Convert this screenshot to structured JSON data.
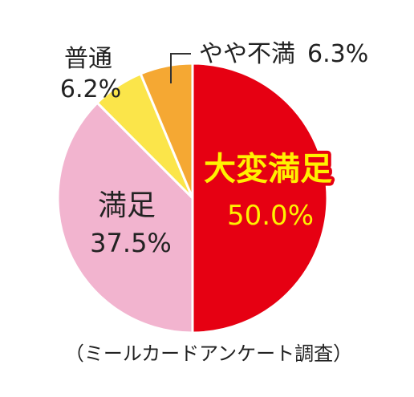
{
  "chart_data": {
    "type": "pie",
    "categories": [
      "大変満足",
      "満足",
      "普通",
      "やや不満"
    ],
    "values": [
      50.0,
      37.5,
      6.2,
      6.3
    ],
    "value_labels": [
      "50.0%",
      "37.5%",
      "6.2%",
      "6.3%"
    ],
    "colors": [
      "#e60012",
      "#f2b4cf",
      "#fbe54a",
      "#f5a833"
    ],
    "highlight_label_color": "#fff100",
    "start_angle": "12 o'clock",
    "direction": "clockwise",
    "footnote": "（ミールカードアンケート調査）"
  }
}
